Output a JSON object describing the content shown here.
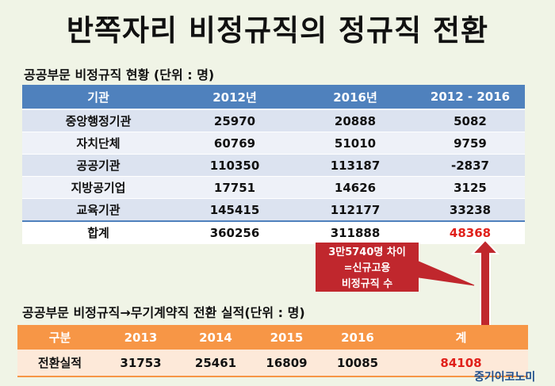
{
  "title": "반쪽자리 비정규직의 정규직 전환",
  "table1": {
    "caption": "공공부문 비정규직 현황 (단위 : 명)",
    "headers": [
      "기관",
      "2012년",
      "2016년",
      "2012 - 2016"
    ],
    "rows": [
      [
        "중앙행정기관",
        "25970",
        "20888",
        "5082"
      ],
      [
        "자치단체",
        "60769",
        "51010",
        "9759"
      ],
      [
        "공공기관",
        "110350",
        "113187",
        "-2837"
      ],
      [
        "지방공기업",
        "17751",
        "14626",
        "3125"
      ],
      [
        "교육기관",
        "145415",
        "112177",
        "33238"
      ],
      [
        "합계",
        "360256",
        "311888",
        "48368"
      ]
    ]
  },
  "callout": {
    "line1": "3만5740명 차이",
    "line2": "=신규고용",
    "line3": "비정규직 수"
  },
  "table2": {
    "caption": "공공부문 비정규직→무기계약직 전환 실적(단위 : 명)",
    "headers": [
      "구분",
      "2013",
      "2014",
      "2015",
      "2016",
      "계"
    ],
    "row": [
      "전환실적",
      "31753",
      "25461",
      "16809",
      "10085",
      "84108"
    ]
  },
  "logo": "중기이코노미",
  "colors": {
    "table1_header": "#4f81bd",
    "table2_header": "#f79646",
    "highlight": "#e0201a",
    "callout_bg": "#c0272d"
  }
}
